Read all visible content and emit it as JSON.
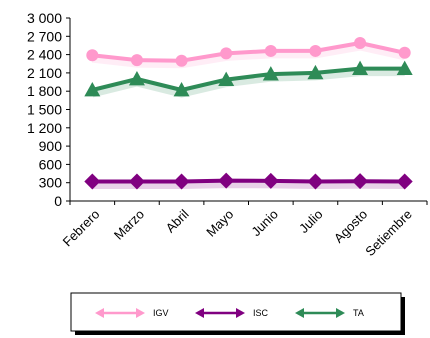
{
  "chart_data": {
    "type": "line",
    "title": "",
    "xlabel": "",
    "ylabel": "",
    "categories": [
      "Febrero",
      "Marzo",
      "Abril",
      "Mayo",
      "Junio",
      "Julio",
      "Agosto",
      "Setiembre"
    ],
    "ylim": [
      0,
      3000
    ],
    "yticks": [
      0,
      300,
      600,
      900,
      1200,
      1500,
      1800,
      2100,
      2400,
      2700,
      3000
    ],
    "ytick_labels": [
      "0",
      "300",
      "600",
      "900",
      "1 200",
      "1 500",
      "1 800",
      "2 100",
      "2 400",
      "2 700",
      "3 000"
    ],
    "grid": false,
    "legend_position": "bottom",
    "series": [
      {
        "name": "IGV",
        "color": "#FF99CC",
        "marker": "circle",
        "values": [
          2390,
          2310,
          2300,
          2420,
          2460,
          2460,
          2590,
          2430
        ]
      },
      {
        "name": "ISC",
        "color": "#800080",
        "marker": "diamond",
        "values": [
          320,
          320,
          320,
          335,
          330,
          320,
          325,
          320
        ]
      },
      {
        "name": "TA",
        "color": "#2E8B57",
        "marker": "triangle",
        "values": [
          1820,
          2000,
          1820,
          1990,
          2080,
          2100,
          2170,
          2170
        ]
      }
    ]
  }
}
